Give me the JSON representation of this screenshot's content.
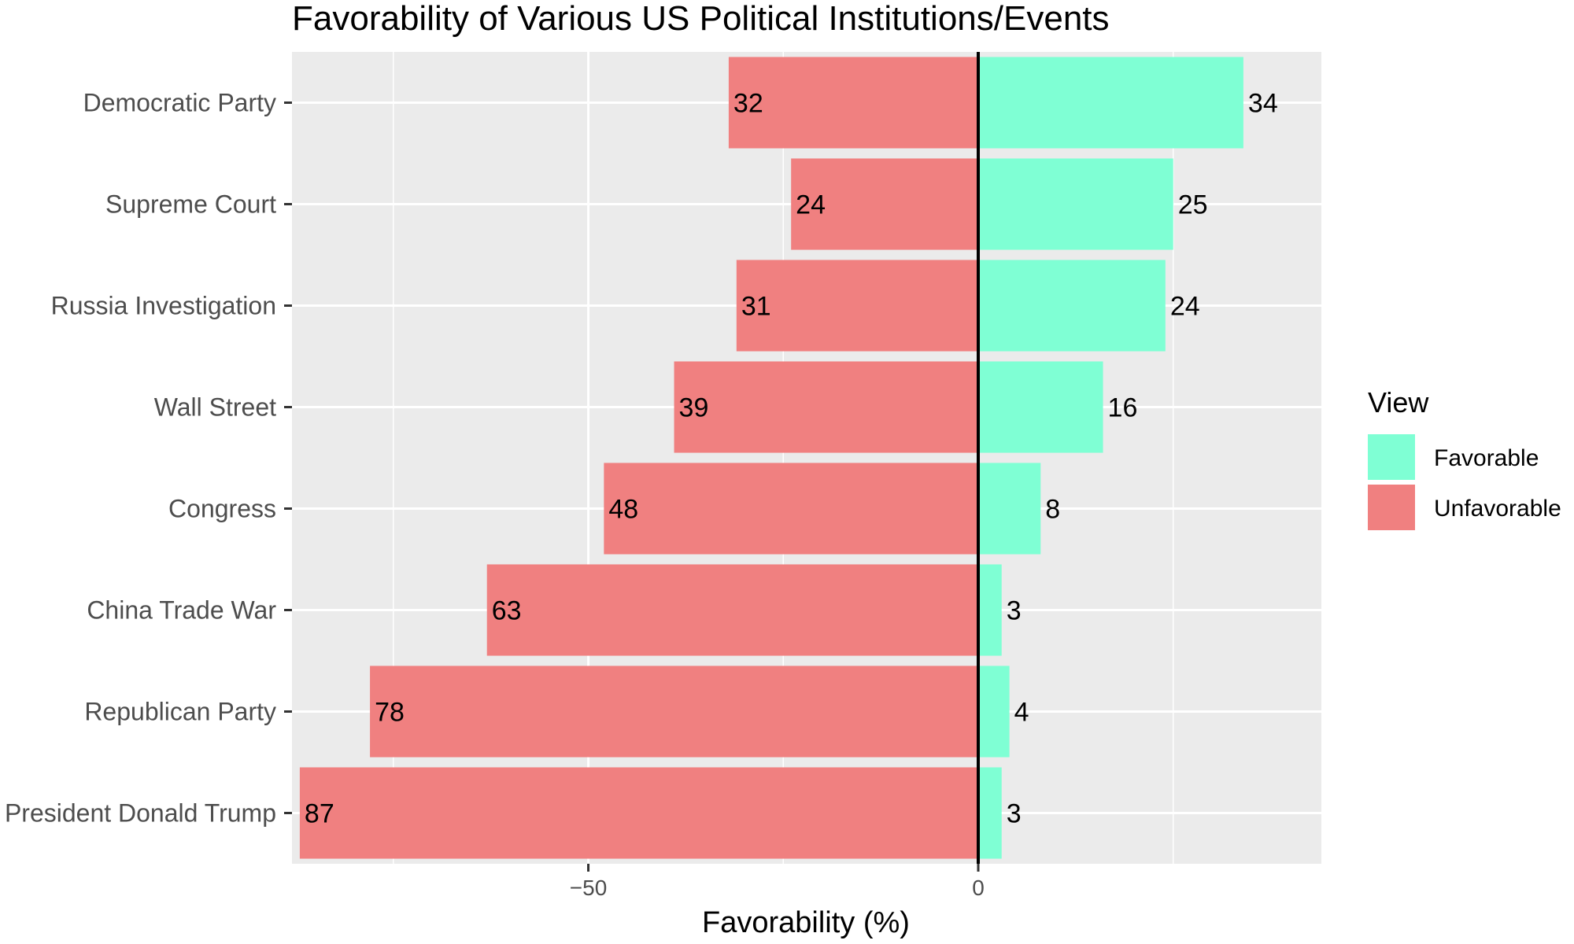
{
  "chart_data": {
    "type": "bar",
    "orientation": "horizontal",
    "title": "Favorability of Various US Political Institutions/Events",
    "xlabel": "Favorability (%)",
    "ylabel": "",
    "xlim": [
      -88,
      44
    ],
    "xticks": [
      -50,
      0
    ],
    "xtick_labels": [
      "−50",
      "0"
    ],
    "grid": true,
    "categories": [
      "Democratic Party",
      "Supreme Court",
      "Russia Investigation",
      "Wall Street",
      "Congress",
      "China Trade War",
      "Republican Party",
      "President Donald Trump"
    ],
    "series": [
      {
        "name": "Favorable",
        "color": "#7fffd4",
        "values": [
          34,
          25,
          24,
          16,
          8,
          3,
          4,
          3
        ]
      },
      {
        "name": "Unfavorable",
        "color": "#f08080",
        "values": [
          -32,
          -24,
          -31,
          -39,
          -48,
          -63,
          -78,
          -87
        ]
      }
    ],
    "legend": {
      "title": "View",
      "placement": "right"
    }
  }
}
